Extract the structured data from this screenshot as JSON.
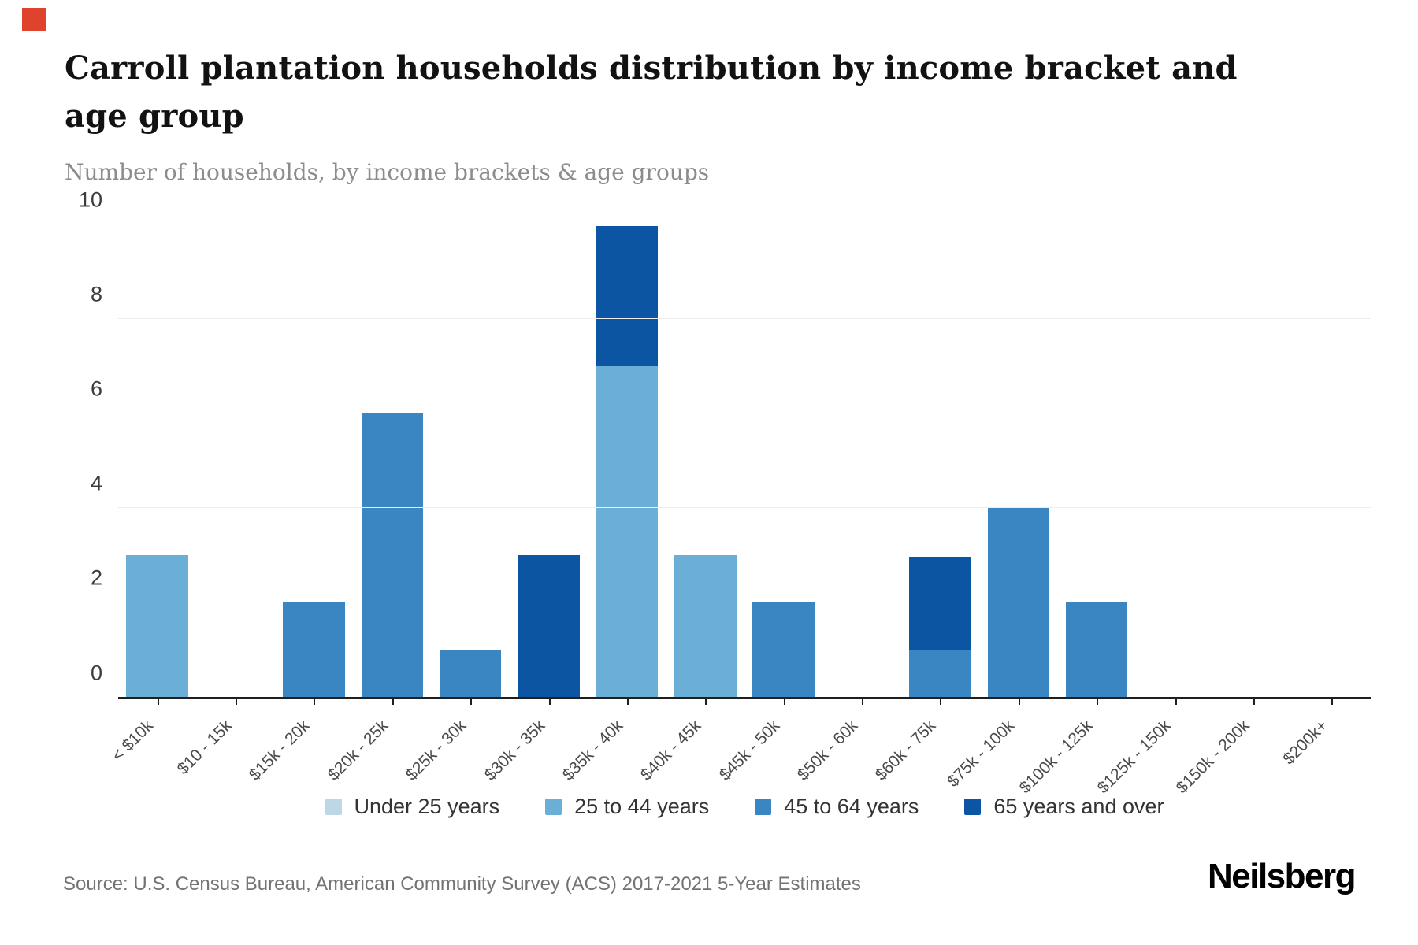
{
  "header": {
    "title_lines": [
      "Carroll plantation households distribution by income bracket and",
      "age group"
    ],
    "subtitle": "Number of households, by income brackets & age groups"
  },
  "footer": {
    "source": "Source: U.S. Census Bureau, American Community Survey (ACS) 2017-2021 5-Year Estimates",
    "brand": "Neilsberg"
  },
  "accent_square_color": "#e0432d",
  "chart_data": {
    "type": "bar",
    "stacked": true,
    "title": "Carroll plantation households distribution by income bracket and age group",
    "subtitle": "Number of households, by income brackets & age groups",
    "xlabel": "",
    "ylabel": "Number of households",
    "ylim": [
      0,
      10
    ],
    "yticks": [
      0,
      2,
      4,
      6,
      8,
      10
    ],
    "grid": "horizontal",
    "legend_position": "bottom",
    "categories": [
      "< $10k",
      "$10 - 15k",
      "$15k - 20k",
      "$20k - 25k",
      "$25k - 30k",
      "$30k - 35k",
      "$35k - 40k",
      "$40k - 45k",
      "$45k - 50k",
      "$50k - 60k",
      "$60k - 75k",
      "$75k - 100k",
      "$100k - 125k",
      "$125k - 150k",
      "$150k - 200k",
      "$200k+"
    ],
    "series": [
      {
        "name": "Under 25 years",
        "color": "#bdd7e7",
        "values": [
          0,
          0,
          0,
          0,
          0,
          0,
          0,
          0,
          0,
          0,
          0,
          0,
          0,
          0,
          0,
          0
        ]
      },
      {
        "name": "25 to 44 years",
        "color": "#6baed6",
        "values": [
          3,
          0,
          0,
          0,
          0,
          0,
          7,
          3,
          0,
          0,
          0,
          0,
          0,
          0,
          0,
          0
        ]
      },
      {
        "name": "45 to 64 years",
        "color": "#3a86c3",
        "values": [
          0,
          0,
          2,
          6,
          1,
          0,
          0,
          0,
          2,
          0,
          1,
          4,
          2,
          0,
          0,
          0
        ]
      },
      {
        "name": "65 years and over",
        "color": "#0b55a3",
        "values": [
          0,
          0,
          0,
          0,
          0,
          3,
          3,
          0,
          0,
          0,
          2,
          0,
          0,
          0,
          0,
          0
        ]
      }
    ],
    "totals": [
      3,
      0,
      2,
      6,
      1,
      3,
      10,
      3,
      2,
      0,
      3,
      4,
      2,
      0,
      0,
      0
    ]
  }
}
